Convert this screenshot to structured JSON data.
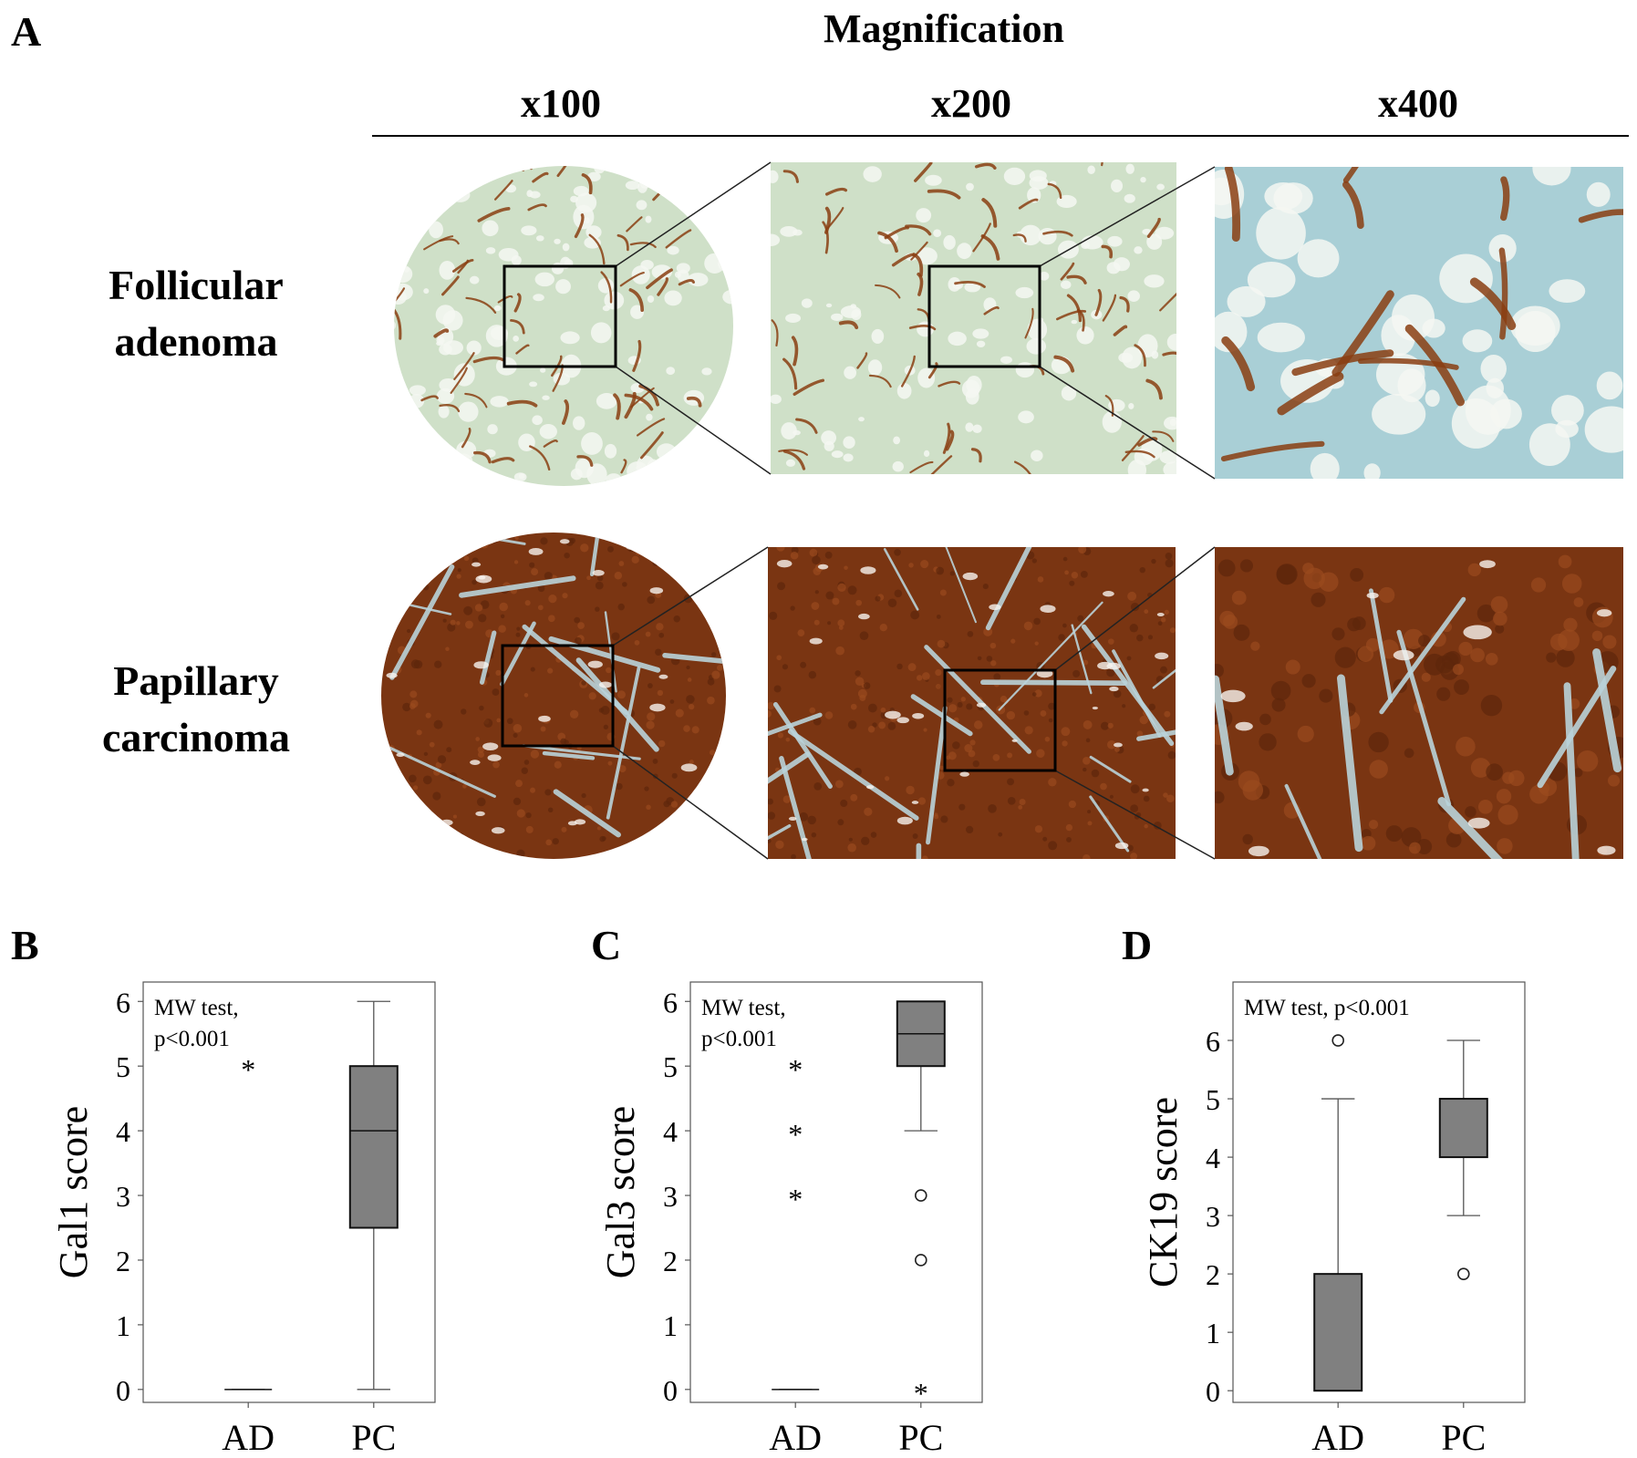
{
  "panels": {
    "A": "A",
    "B": "B",
    "C": "C",
    "D": "D"
  },
  "header": {
    "title": "Magnification",
    "columns": [
      "x100",
      "x200",
      "x400"
    ]
  },
  "rows": [
    {
      "line1": "Follicular",
      "line2": "adenoma"
    },
    {
      "line1": "Papillary",
      "line2": "carcinoma"
    }
  ],
  "colors": {
    "fa_background": "#cfe0c8",
    "fa_stain": "#8a3e12",
    "fa_x400_background": "#a9cfd6",
    "pc_background": "#7a3512",
    "pc_stroma": "#b9d3d9",
    "box_fill": "#808080"
  },
  "chart_data": [
    {
      "type": "box",
      "panel": "B",
      "ylabel": "Gal1  score",
      "annotation": [
        "MW test,",
        "p<0.001"
      ],
      "categories": [
        "AD",
        "PC"
      ],
      "yticks": [
        0,
        1,
        2,
        3,
        4,
        5,
        6
      ],
      "ylim": [
        -0.2,
        6.3
      ],
      "boxes": [
        {
          "category": "AD",
          "min": 0,
          "q1": 0,
          "median": 0,
          "q3": 0,
          "max": 0,
          "outliers": [],
          "extremes": [
            5
          ]
        },
        {
          "category": "PC",
          "min": 0,
          "q1": 2.5,
          "median": 4,
          "q3": 5,
          "max": 6,
          "outliers": [],
          "extremes": []
        }
      ]
    },
    {
      "type": "box",
      "panel": "C",
      "ylabel": "Gal3 score",
      "annotation": [
        "MW test,",
        "p<0.001"
      ],
      "categories": [
        "AD",
        "PC"
      ],
      "yticks": [
        0,
        1,
        2,
        3,
        4,
        5,
        6
      ],
      "ylim": [
        -0.2,
        6.3
      ],
      "boxes": [
        {
          "category": "AD",
          "min": 0,
          "q1": 0,
          "median": 0,
          "q3": 0,
          "max": 0,
          "outliers": [],
          "extremes": [
            3,
            4,
            5
          ]
        },
        {
          "category": "PC",
          "min": 4,
          "q1": 5,
          "median": 5.5,
          "q3": 6,
          "max": 6,
          "outliers": [
            2,
            3
          ],
          "extremes": [
            0
          ]
        }
      ]
    },
    {
      "type": "box",
      "panel": "D",
      "ylabel": "CK19 score",
      "annotation": [
        "MW test, p<0.001"
      ],
      "categories": [
        "AD",
        "PC"
      ],
      "yticks": [
        0,
        1,
        2,
        3,
        4,
        5,
        6
      ],
      "ylim": [
        -0.2,
        7.0
      ],
      "boxes": [
        {
          "category": "AD",
          "min": 0,
          "q1": 0,
          "median": 0,
          "q3": 2,
          "max": 5,
          "outliers": [
            6
          ],
          "extremes": []
        },
        {
          "category": "PC",
          "min": 3,
          "q1": 4,
          "median": 5,
          "q3": 5,
          "max": 6,
          "outliers": [
            2
          ],
          "extremes": []
        }
      ]
    }
  ]
}
